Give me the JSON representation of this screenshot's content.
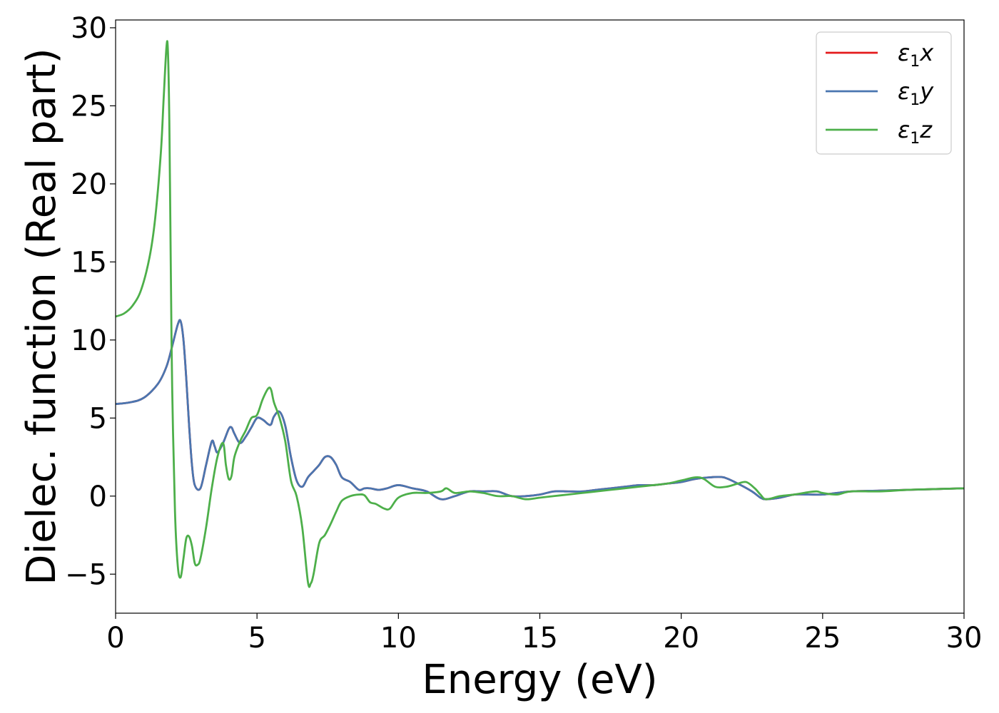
{
  "chart_data": {
    "type": "line",
    "title": "",
    "xlabel": "Energy (eV)",
    "ylabel": "Dielec. function (Real part)",
    "xlim": [
      0,
      30
    ],
    "ylim": [
      -7.5,
      30.5
    ],
    "xticks": [
      0,
      5,
      10,
      15,
      20,
      25,
      30
    ],
    "yticks": [
      -5,
      0,
      5,
      10,
      15,
      20,
      25,
      30
    ],
    "xtick_labels": [
      "0",
      "5",
      "10",
      "15",
      "20",
      "25",
      "30"
    ],
    "ytick_labels": [
      "−5",
      "0",
      "5",
      "10",
      "15",
      "20",
      "25",
      "30"
    ],
    "grid": false,
    "legend_position": "top-right",
    "series": [
      {
        "name": "ε₁x",
        "legend_base": "ε",
        "legend_sub": "1",
        "legend_tail": "x",
        "color": "#e41a1c",
        "x": [
          0,
          0.5,
          1.0,
          1.5,
          1.8,
          2.0,
          2.2,
          2.3,
          2.4,
          2.5,
          2.6,
          2.7,
          2.8,
          3.0,
          3.2,
          3.4,
          3.5,
          3.6,
          3.8,
          4.0,
          4.1,
          4.2,
          4.4,
          4.6,
          4.8,
          5.0,
          5.2,
          5.4,
          5.5,
          5.6,
          5.8,
          6.0,
          6.2,
          6.4,
          6.6,
          6.8,
          7.0,
          7.2,
          7.4,
          7.6,
          7.8,
          8.0,
          8.3,
          8.6,
          8.8,
          9.0,
          9.3,
          9.6,
          10.0,
          10.5,
          11.0,
          11.5,
          12.0,
          12.5,
          13.0,
          13.5,
          14.0,
          14.5,
          15.0,
          15.5,
          16.0,
          16.5,
          17.0,
          17.5,
          18.0,
          18.5,
          19.0,
          19.5,
          20.0,
          20.5,
          21.0,
          21.5,
          22.0,
          22.5,
          22.8,
          23.0,
          23.5,
          24.0,
          24.5,
          25.0,
          25.5,
          26.0,
          27.0,
          28.0,
          29.0,
          30.0
        ],
        "y": [
          5.9,
          6.0,
          6.3,
          7.2,
          8.3,
          9.6,
          11.0,
          11.2,
          10.0,
          7.5,
          4.5,
          2.0,
          0.7,
          0.5,
          2.0,
          3.5,
          3.2,
          2.8,
          3.4,
          4.3,
          4.4,
          4.0,
          3.4,
          3.8,
          4.4,
          5.0,
          4.9,
          4.6,
          4.6,
          5.1,
          5.4,
          4.5,
          2.5,
          1.0,
          0.6,
          1.2,
          1.6,
          2.0,
          2.5,
          2.5,
          2.0,
          1.2,
          0.9,
          0.4,
          0.5,
          0.5,
          0.4,
          0.5,
          0.7,
          0.5,
          0.3,
          -0.2,
          0.0,
          0.3,
          0.3,
          0.3,
          0.0,
          0.0,
          0.1,
          0.3,
          0.3,
          0.3,
          0.4,
          0.5,
          0.6,
          0.7,
          0.7,
          0.8,
          0.9,
          1.1,
          1.2,
          1.2,
          0.8,
          0.3,
          -0.1,
          -0.2,
          -0.1,
          0.1,
          0.1,
          0.1,
          0.2,
          0.3,
          0.35,
          0.4,
          0.45,
          0.5
        ]
      },
      {
        "name": "ε₁y",
        "legend_base": "ε",
        "legend_sub": "1",
        "legend_tail": "y",
        "color": "#4a76b0",
        "x": [
          0,
          0.5,
          1.0,
          1.5,
          1.8,
          2.0,
          2.2,
          2.3,
          2.4,
          2.5,
          2.6,
          2.7,
          2.8,
          3.0,
          3.2,
          3.4,
          3.5,
          3.6,
          3.8,
          4.0,
          4.1,
          4.2,
          4.4,
          4.6,
          4.8,
          5.0,
          5.2,
          5.4,
          5.5,
          5.6,
          5.8,
          6.0,
          6.2,
          6.4,
          6.6,
          6.8,
          7.0,
          7.2,
          7.4,
          7.6,
          7.8,
          8.0,
          8.3,
          8.6,
          8.8,
          9.0,
          9.3,
          9.6,
          10.0,
          10.5,
          11.0,
          11.5,
          12.0,
          12.5,
          13.0,
          13.5,
          14.0,
          14.5,
          15.0,
          15.5,
          16.0,
          16.5,
          17.0,
          17.5,
          18.0,
          18.5,
          19.0,
          19.5,
          20.0,
          20.5,
          21.0,
          21.5,
          22.0,
          22.5,
          22.8,
          23.0,
          23.5,
          24.0,
          24.5,
          25.0,
          25.5,
          26.0,
          27.0,
          28.0,
          29.0,
          30.0
        ],
        "y": [
          5.9,
          6.0,
          6.3,
          7.2,
          8.3,
          9.6,
          11.0,
          11.2,
          10.0,
          7.5,
          4.5,
          2.0,
          0.7,
          0.5,
          2.0,
          3.5,
          3.2,
          2.8,
          3.4,
          4.3,
          4.4,
          4.0,
          3.4,
          3.8,
          4.4,
          5.0,
          4.9,
          4.6,
          4.6,
          5.1,
          5.4,
          4.5,
          2.5,
          1.0,
          0.6,
          1.2,
          1.6,
          2.0,
          2.5,
          2.5,
          2.0,
          1.2,
          0.9,
          0.4,
          0.5,
          0.5,
          0.4,
          0.5,
          0.7,
          0.5,
          0.3,
          -0.2,
          0.0,
          0.3,
          0.3,
          0.3,
          0.0,
          0.0,
          0.1,
          0.3,
          0.3,
          0.3,
          0.4,
          0.5,
          0.6,
          0.7,
          0.7,
          0.8,
          0.9,
          1.1,
          1.2,
          1.2,
          0.8,
          0.3,
          -0.1,
          -0.2,
          -0.1,
          0.1,
          0.1,
          0.1,
          0.2,
          0.3,
          0.35,
          0.4,
          0.45,
          0.5
        ]
      },
      {
        "name": "ε₁z",
        "legend_base": "ε",
        "legend_sub": "1",
        "legend_tail": "z",
        "color": "#4daf4a",
        "x": [
          0,
          0.3,
          0.6,
          0.9,
          1.2,
          1.4,
          1.6,
          1.7,
          1.8,
          1.85,
          1.9,
          1.95,
          2.0,
          2.1,
          2.2,
          2.3,
          2.4,
          2.5,
          2.6,
          2.7,
          2.8,
          2.9,
          3.0,
          3.2,
          3.4,
          3.6,
          3.8,
          3.9,
          4.0,
          4.1,
          4.2,
          4.4,
          4.6,
          4.8,
          5.0,
          5.2,
          5.4,
          5.5,
          5.6,
          5.8,
          6.0,
          6.2,
          6.4,
          6.6,
          6.8,
          6.9,
          7.0,
          7.2,
          7.4,
          7.6,
          7.8,
          8.0,
          8.3,
          8.6,
          8.8,
          9.0,
          9.2,
          9.5,
          9.7,
          10.0,
          10.5,
          11.0,
          11.5,
          11.7,
          12.0,
          12.5,
          13.0,
          13.5,
          14.0,
          14.5,
          15.0,
          15.5,
          16.0,
          16.5,
          17.0,
          17.5,
          18.0,
          18.5,
          19.0,
          19.5,
          20.0,
          20.5,
          20.8,
          21.2,
          21.6,
          22.0,
          22.3,
          22.6,
          22.8,
          23.0,
          23.5,
          24.0,
          24.5,
          24.8,
          25.0,
          25.5,
          26.0,
          27.0,
          28.0,
          29.0,
          30.0
        ],
        "y": [
          11.5,
          11.7,
          12.2,
          13.2,
          15.3,
          17.8,
          22.0,
          25.5,
          28.8,
          28.5,
          24.0,
          15.0,
          7.0,
          -1.0,
          -4.5,
          -5.2,
          -4.0,
          -2.7,
          -2.6,
          -3.2,
          -4.3,
          -4.4,
          -4.0,
          -2.0,
          0.5,
          2.5,
          3.4,
          2.0,
          1.1,
          1.3,
          2.5,
          3.5,
          4.2,
          5.0,
          5.2,
          6.2,
          6.9,
          6.8,
          6.0,
          5.0,
          3.5,
          1.0,
          0.0,
          -2.0,
          -5.5,
          -5.6,
          -5.0,
          -3.0,
          -2.5,
          -1.8,
          -1.0,
          -0.3,
          0.0,
          0.1,
          0.05,
          -0.4,
          -0.5,
          -0.8,
          -0.8,
          -0.1,
          0.2,
          0.2,
          0.3,
          0.5,
          0.2,
          0.3,
          0.2,
          0.0,
          0.0,
          -0.2,
          -0.1,
          0.0,
          0.1,
          0.2,
          0.3,
          0.4,
          0.5,
          0.6,
          0.7,
          0.8,
          1.0,
          1.2,
          1.1,
          0.6,
          0.6,
          0.8,
          0.9,
          0.5,
          0.1,
          -0.2,
          0.0,
          0.1,
          0.25,
          0.3,
          0.2,
          0.1,
          0.3,
          0.3,
          0.4,
          0.45,
          0.5
        ]
      }
    ]
  }
}
